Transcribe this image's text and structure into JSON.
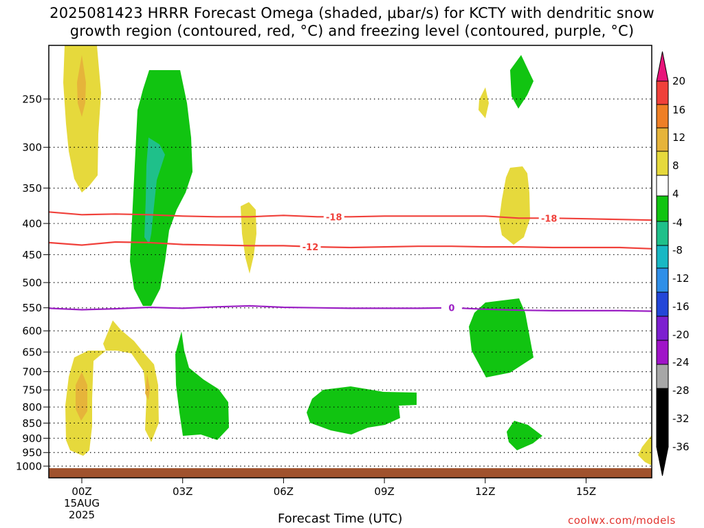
{
  "title_line1": "2025081423 HRRR Forecast Omega (shaded, μbar/s) for KCTY with dendritic snow",
  "title_line2": "growth region (contoured, red, °C) and freezing level (contoured, purple, °C)",
  "xlabel": "Forecast Time (UTC)",
  "credit": "coolwx.com/models",
  "chart_data": {
    "type": "time-height contour",
    "title": "2025081423 HRRR Forecast Omega (shaded, μbar/s) for KCTY with dendritic snow growth region (contoured, red, °C) and freezing level (contoured, purple, °C)",
    "xlabel": "Forecast Time (UTC)",
    "ylabel": "",
    "y_axis": "pressure (hPa), inverted",
    "ylim": [
      1025,
      200
    ],
    "xlim_hours": [
      -0.5,
      17
    ],
    "x_ticks": [
      {
        "hour": 0,
        "label": "00Z",
        "sub1": "15AUG",
        "sub2": "2025"
      },
      {
        "hour": 3,
        "label": "03Z"
      },
      {
        "hour": 6,
        "label": "06Z"
      },
      {
        "hour": 9,
        "label": "09Z"
      },
      {
        "hour": 12,
        "label": "12Z"
      },
      {
        "hour": 15,
        "label": "15Z"
      }
    ],
    "y_ticks": [
      250,
      300,
      350,
      400,
      450,
      500,
      550,
      600,
      650,
      700,
      750,
      800,
      850,
      900,
      950,
      1000
    ],
    "grid": "dotted horizontal lines at each y tick",
    "colorbar": {
      "labels": [
        "20",
        "16",
        "12",
        "8",
        "4",
        "-4",
        "-8",
        "-12",
        "-16",
        "-20",
        "-24",
        "-28",
        "-32",
        "-36"
      ],
      "colors": [
        "#e8147a",
        "#f0403a",
        "#ef7f25",
        "#e6b43a",
        "#e6d93c",
        "#ffffff",
        "#11c411",
        "#1fc08a",
        "#19b8c4",
        "#2f8fe8",
        "#2346d8",
        "#7d1fd0",
        "#a014c8",
        "#a7a7a7",
        "#000000"
      ]
    },
    "contours": [
      {
        "name": "-18",
        "color": "#f0403a",
        "points": [
          [
            -0.5,
            383
          ],
          [
            0,
            387
          ],
          [
            1,
            386
          ],
          [
            2,
            387
          ],
          [
            3,
            389
          ],
          [
            4,
            390
          ],
          [
            5,
            390
          ],
          [
            6,
            388
          ],
          [
            7,
            390
          ],
          [
            8,
            390
          ],
          [
            9,
            389
          ],
          [
            10,
            389
          ],
          [
            11,
            389
          ],
          [
            12,
            389
          ],
          [
            13,
            392
          ],
          [
            14,
            392
          ],
          [
            15,
            393
          ],
          [
            16,
            394
          ],
          [
            17,
            395
          ]
        ]
      },
      {
        "name": "-12",
        "color": "#f0403a",
        "points": [
          [
            -0.5,
            430
          ],
          [
            0,
            434
          ],
          [
            1,
            429
          ],
          [
            2,
            430
          ],
          [
            3,
            433
          ],
          [
            4,
            434
          ],
          [
            5,
            435
          ],
          [
            6,
            435
          ],
          [
            7,
            437
          ],
          [
            8,
            438
          ],
          [
            9,
            437
          ],
          [
            10,
            436
          ],
          [
            11,
            436
          ],
          [
            12,
            437
          ],
          [
            13,
            437
          ],
          [
            14,
            438
          ],
          [
            15,
            438
          ],
          [
            16,
            438
          ],
          [
            17,
            440
          ]
        ]
      },
      {
        "name": "0",
        "color": "#9b1fc4",
        "points": [
          [
            -0.5,
            551
          ],
          [
            0,
            554
          ],
          [
            1,
            552
          ],
          [
            2,
            549
          ],
          [
            3,
            551
          ],
          [
            4,
            548
          ],
          [
            5,
            546
          ],
          [
            6,
            549
          ],
          [
            7,
            550
          ],
          [
            8,
            551
          ],
          [
            9,
            551
          ],
          [
            10,
            551
          ],
          [
            11,
            550
          ],
          [
            12,
            553
          ],
          [
            13,
            555
          ],
          [
            14,
            556
          ],
          [
            15,
            556
          ],
          [
            16,
            556
          ],
          [
            17,
            557
          ]
        ]
      }
    ],
    "omega_regions": [
      {
        "value_range": [
          4,
          8
        ],
        "color": "#e6d93c",
        "location": "00Z-01Z, 215-355 hPa (peak 8-12 near 245 hPa)"
      },
      {
        "value_range": [
          -8,
          -4
        ],
        "color": "#11c411",
        "location": "01Z-03Z, 235-545 hPa (core -8 to -12 near 300-490 hPa)"
      },
      {
        "value_range": [
          4,
          8
        ],
        "color": "#e6d93c",
        "location": "05Z, 375-480 hPa"
      },
      {
        "value_range": [
          -8,
          -4
        ],
        "color": "#11c411",
        "location": "12Z-13Z, 230-260 hPa"
      },
      {
        "value_range": [
          4,
          8
        ],
        "color": "#e6d93c",
        "location": "12Z, 240-270 hPa"
      },
      {
        "value_range": [
          4,
          8
        ],
        "color": "#e6d93c",
        "location": "13Z, 330-440 hPa"
      },
      {
        "value_range": [
          -8,
          -4
        ],
        "color": "#11c411",
        "location": "12Z-13Z, 545-715 hPa"
      },
      {
        "value_range": [
          4,
          8
        ],
        "color": "#e6d93c",
        "location": "00Z-02Z, 600-950 hPa (peak 8-12 near 750-800 hPa)"
      },
      {
        "value_range": [
          -8,
          -4
        ],
        "color": "#11c411",
        "location": "03Z-04Z, 610-910 hPa"
      },
      {
        "value_range": [
          -8,
          -4
        ],
        "color": "#11c411",
        "location": "07Z-10Z, 770-885 hPa"
      },
      {
        "value_range": [
          -8,
          -4
        ],
        "color": "#11c411",
        "location": "13Z, 865-935 hPa"
      },
      {
        "value_range": [
          4,
          8
        ],
        "color": "#e6d93c",
        "location": "17Z, 930-990 hPa"
      }
    ],
    "terrain": {
      "color": "#a0522d",
      "pressure_top": 1005
    }
  }
}
